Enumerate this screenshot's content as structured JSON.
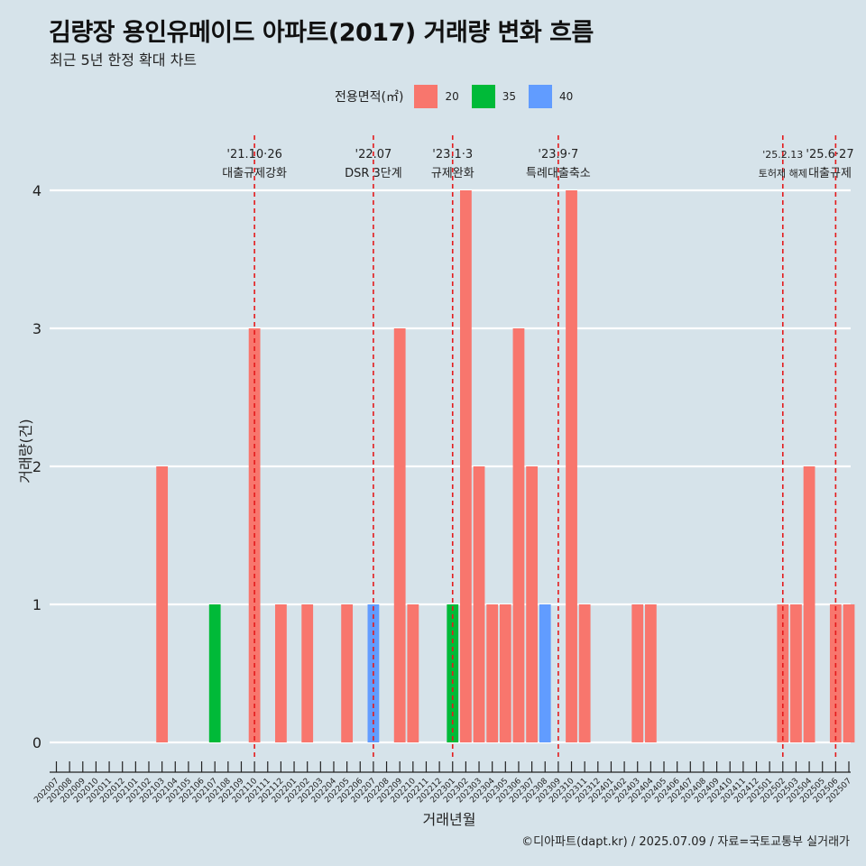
{
  "title": "김량장 용인유메이드 아파트(2017) 거래량 변화 흐름",
  "subtitle": "최근 5년 한정 확대 차트",
  "caption": "©디아파트(dapt.kr) / 2025.07.09 / 자료=국토교통부 실거래가",
  "chart_data": {
    "type": "bar",
    "xlabel": "거래년월",
    "ylabel": "거래량(건)",
    "ylim": [
      0,
      4
    ],
    "yticks": [
      0,
      1,
      2,
      3,
      4
    ],
    "grid": "horizontal",
    "legend_position": "top",
    "legend_title": "전용면적(㎡)",
    "categories": [
      "202007",
      "202008",
      "202009",
      "202010",
      "202011",
      "202012",
      "202101",
      "202102",
      "202103",
      "202104",
      "202105",
      "202106",
      "202107",
      "202108",
      "202109",
      "202110",
      "202111",
      "202112",
      "202201",
      "202202",
      "202203",
      "202204",
      "202205",
      "202206",
      "202207",
      "202208",
      "202209",
      "202210",
      "202211",
      "202212",
      "202301",
      "202302",
      "202303",
      "202304",
      "202305",
      "202306",
      "202307",
      "202308",
      "202309",
      "202310",
      "202311",
      "202312",
      "202401",
      "202402",
      "202403",
      "202404",
      "202405",
      "202406",
      "202407",
      "202408",
      "202409",
      "202410",
      "202411",
      "202412",
      "202501",
      "202502",
      "202503",
      "202504",
      "202505",
      "202506",
      "202507"
    ],
    "series": [
      {
        "name": "20",
        "color": "#f8766d",
        "values": [
          0,
          0,
          0,
          0,
          0,
          0,
          0,
          0,
          2,
          0,
          0,
          0,
          0,
          0,
          0,
          3,
          0,
          1,
          0,
          1,
          0,
          0,
          1,
          0,
          0,
          0,
          3,
          1,
          0,
          0,
          0,
          4,
          2,
          1,
          1,
          3,
          2,
          0,
          0,
          4,
          1,
          0,
          0,
          0,
          1,
          1,
          0,
          0,
          0,
          0,
          0,
          0,
          0,
          0,
          0,
          1,
          1,
          2,
          0,
          1,
          1
        ]
      },
      {
        "name": "35",
        "color": "#00ba38",
        "values": [
          0,
          0,
          0,
          0,
          0,
          0,
          0,
          0,
          0,
          0,
          0,
          0,
          1,
          0,
          0,
          0,
          0,
          0,
          0,
          0,
          0,
          0,
          0,
          0,
          0,
          0,
          0,
          0,
          0,
          0,
          1,
          0,
          0,
          0,
          0,
          0,
          0,
          0,
          0,
          0,
          0,
          0,
          0,
          0,
          0,
          0,
          0,
          0,
          0,
          0,
          0,
          0,
          0,
          0,
          0,
          0,
          0,
          0,
          0,
          0,
          0
        ]
      },
      {
        "name": "40",
        "color": "#619cff",
        "values": [
          0,
          0,
          0,
          0,
          0,
          0,
          0,
          0,
          0,
          0,
          0,
          0,
          0,
          0,
          0,
          0,
          0,
          0,
          0,
          0,
          0,
          0,
          0,
          0,
          1,
          0,
          0,
          0,
          0,
          0,
          0,
          0,
          0,
          0,
          0,
          0,
          0,
          1,
          0,
          0,
          0,
          0,
          0,
          0,
          0,
          0,
          0,
          0,
          0,
          0,
          0,
          0,
          0,
          0,
          0,
          0,
          0,
          0,
          0,
          0,
          0
        ]
      }
    ],
    "annotations": [
      {
        "at": "202110",
        "date": "'21.10·26",
        "text": "대출규제강화"
      },
      {
        "at": "202207",
        "date": "'22.07",
        "text": "DSR 3단계"
      },
      {
        "at": "202301",
        "date": "'23.1·3",
        "text": "규제완화"
      },
      {
        "at": "202309",
        "date": "'23.9·7",
        "text": "특례대출축소"
      },
      {
        "at": "202502",
        "date": "'25.2.13",
        "text": "토허제 해제"
      },
      {
        "at": "202506",
        "date": "'25.6·27",
        "text": "대출규제"
      }
    ],
    "annotation_line_color": "#e41a1c"
  }
}
